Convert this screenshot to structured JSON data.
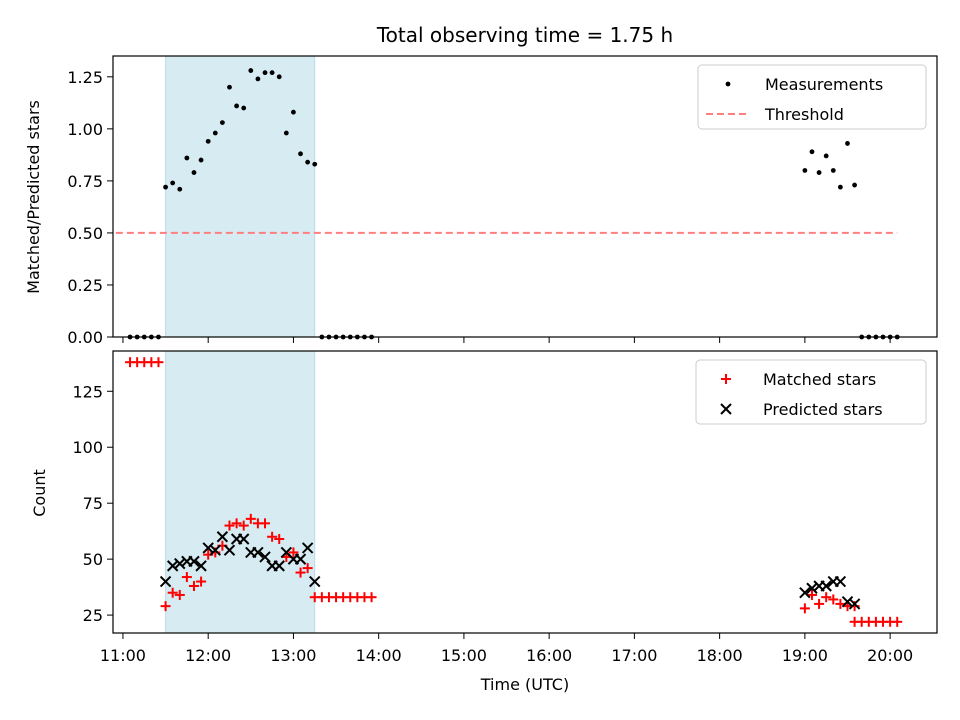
{
  "chart_data": [
    {
      "type": "scatter",
      "title": "Total observing time = 1.75 h",
      "ylabel": "Matched/Predicted stars",
      "xlim": [
        "10:53",
        "20:33"
      ],
      "ylim": [
        0,
        1.35
      ],
      "yticks": [
        "0.00",
        "0.25",
        "0.50",
        "0.75",
        "1.00",
        "1.25"
      ],
      "shaded_interval": [
        "11:30",
        "13:15"
      ],
      "shade_color": "#add8e6",
      "legend_position": "top-right",
      "series": [
        {
          "name": "Measurements",
          "marker": "dot",
          "color": "#000000",
          "points": [
            [
              "11:05",
              0
            ],
            [
              "11:10",
              0
            ],
            [
              "11:15",
              0
            ],
            [
              "11:20",
              0
            ],
            [
              "11:25",
              0
            ],
            [
              "11:30",
              0.72
            ],
            [
              "11:35",
              0.74
            ],
            [
              "11:40",
              0.71
            ],
            [
              "11:45",
              0.86
            ],
            [
              "11:50",
              0.79
            ],
            [
              "11:55",
              0.85
            ],
            [
              "12:00",
              0.94
            ],
            [
              "12:05",
              0.98
            ],
            [
              "12:10",
              1.03
            ],
            [
              "12:15",
              1.2
            ],
            [
              "12:20",
              1.11
            ],
            [
              "12:25",
              1.1
            ],
            [
              "12:30",
              1.28
            ],
            [
              "12:35",
              1.24
            ],
            [
              "12:40",
              1.27
            ],
            [
              "12:45",
              1.27
            ],
            [
              "12:50",
              1.25
            ],
            [
              "12:55",
              0.98
            ],
            [
              "13:00",
              1.08
            ],
            [
              "13:05",
              0.88
            ],
            [
              "13:10",
              0.84
            ],
            [
              "13:15",
              0.83
            ],
            [
              "13:20",
              0
            ],
            [
              "13:25",
              0
            ],
            [
              "13:30",
              0
            ],
            [
              "13:35",
              0
            ],
            [
              "13:40",
              0
            ],
            [
              "13:45",
              0
            ],
            [
              "13:50",
              0
            ],
            [
              "13:55",
              0
            ],
            [
              "19:00",
              0.8
            ],
            [
              "19:05",
              0.89
            ],
            [
              "19:10",
              0.79
            ],
            [
              "19:15",
              0.87
            ],
            [
              "19:20",
              0.8
            ],
            [
              "19:25",
              0.72
            ],
            [
              "19:30",
              0.93
            ],
            [
              "19:35",
              0.73
            ],
            [
              "19:40",
              0
            ],
            [
              "19:45",
              0
            ],
            [
              "19:50",
              0
            ],
            [
              "19:55",
              0
            ],
            [
              "20:00",
              0
            ],
            [
              "20:05",
              0
            ]
          ]
        },
        {
          "name": "Threshold",
          "style": "dashed",
          "color": "#ff7f7f",
          "points": [
            [
              "10:55",
              0.5
            ],
            [
              "20:05",
              0.5
            ]
          ]
        }
      ]
    },
    {
      "type": "scatter",
      "xlabel": "Time (UTC)",
      "ylabel": "Count",
      "xlim": [
        "10:53",
        "20:33"
      ],
      "ylim": [
        17,
        143
      ],
      "yticks": [
        "25",
        "50",
        "75",
        "100",
        "125"
      ],
      "xticks": [
        "11:00",
        "12:00",
        "13:00",
        "14:00",
        "15:00",
        "16:00",
        "17:00",
        "18:00",
        "19:00",
        "20:00"
      ],
      "shaded_interval": [
        "11:30",
        "13:15"
      ],
      "shade_color": "#add8e6",
      "legend_position": "top-right",
      "series": [
        {
          "name": "Matched stars",
          "marker": "plus",
          "color": "#ff0000",
          "points": [
            [
              "11:05",
              138
            ],
            [
              "11:10",
              138
            ],
            [
              "11:15",
              138
            ],
            [
              "11:20",
              138
            ],
            [
              "11:25",
              138
            ],
            [
              "11:30",
              29
            ],
            [
              "11:35",
              35
            ],
            [
              "11:40",
              34
            ],
            [
              "11:45",
              42
            ],
            [
              "11:50",
              38
            ],
            [
              "11:55",
              40
            ],
            [
              "12:00",
              52
            ],
            [
              "12:05",
              53
            ],
            [
              "12:10",
              56
            ],
            [
              "12:15",
              65
            ],
            [
              "12:20",
              66
            ],
            [
              "12:25",
              65
            ],
            [
              "12:30",
              68
            ],
            [
              "12:35",
              66
            ],
            [
              "12:40",
              66
            ],
            [
              "12:45",
              60
            ],
            [
              "12:50",
              59
            ],
            [
              "12:55",
              51
            ],
            [
              "13:00",
              53
            ],
            [
              "13:05",
              44
            ],
            [
              "13:10",
              46
            ],
            [
              "13:15",
              33
            ],
            [
              "13:20",
              33
            ],
            [
              "13:25",
              33
            ],
            [
              "13:30",
              33
            ],
            [
              "13:35",
              33
            ],
            [
              "13:40",
              33
            ],
            [
              "13:45",
              33
            ],
            [
              "13:50",
              33
            ],
            [
              "13:55",
              33
            ],
            [
              "19:00",
              28
            ],
            [
              "19:05",
              34
            ],
            [
              "19:10",
              30
            ],
            [
              "19:15",
              33
            ],
            [
              "19:20",
              32
            ],
            [
              "19:25",
              30
            ],
            [
              "19:30",
              29
            ],
            [
              "19:35",
              29
            ],
            [
              "19:35",
              22
            ],
            [
              "19:40",
              22
            ],
            [
              "19:45",
              22
            ],
            [
              "19:50",
              22
            ],
            [
              "19:55",
              22
            ],
            [
              "20:00",
              22
            ],
            [
              "20:05",
              22
            ]
          ]
        },
        {
          "name": "Predicted stars",
          "marker": "x",
          "color": "#000000",
          "points": [
            [
              "11:30",
              40
            ],
            [
              "11:35",
              47
            ],
            [
              "11:40",
              48
            ],
            [
              "11:45",
              49
            ],
            [
              "11:50",
              49
            ],
            [
              "11:55",
              47
            ],
            [
              "12:00",
              55
            ],
            [
              "12:05",
              54
            ],
            [
              "12:10",
              60
            ],
            [
              "12:15",
              54
            ],
            [
              "12:20",
              59
            ],
            [
              "12:25",
              59
            ],
            [
              "12:30",
              53
            ],
            [
              "12:35",
              53
            ],
            [
              "12:40",
              51
            ],
            [
              "12:45",
              47
            ],
            [
              "12:50",
              47
            ],
            [
              "12:55",
              53
            ],
            [
              "13:00",
              50
            ],
            [
              "13:05",
              50
            ],
            [
              "13:10",
              55
            ],
            [
              "13:15",
              40
            ],
            [
              "19:00",
              35
            ],
            [
              "19:05",
              37
            ],
            [
              "19:10",
              38
            ],
            [
              "19:15",
              38
            ],
            [
              "19:20",
              40
            ],
            [
              "19:25",
              40
            ],
            [
              "19:30",
              31
            ],
            [
              "19:35",
              30
            ]
          ]
        }
      ]
    }
  ]
}
